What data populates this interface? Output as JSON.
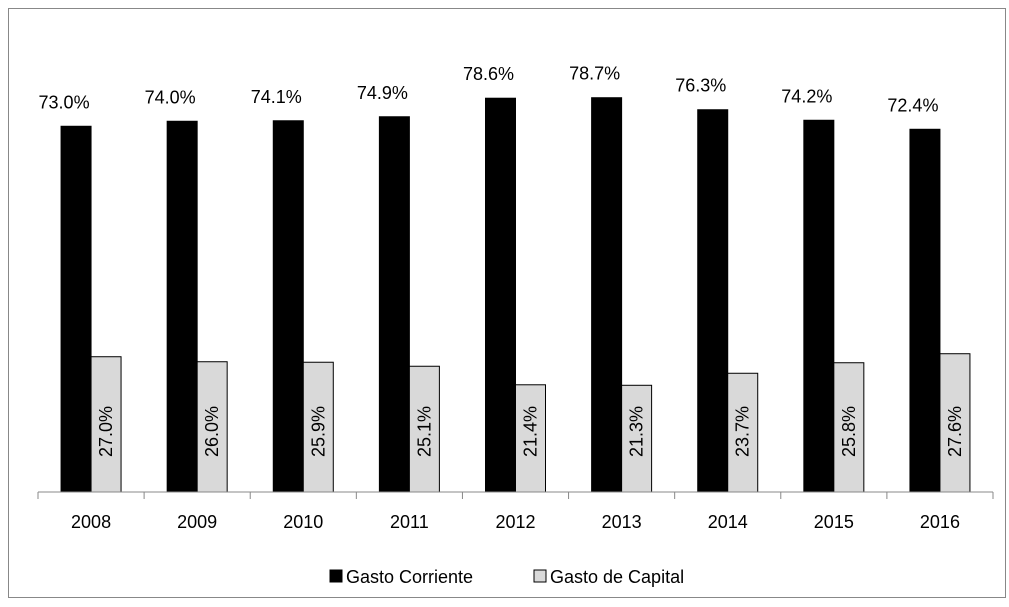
{
  "chart_data": {
    "type": "bar",
    "categories": [
      "2008",
      "2009",
      "2010",
      "2011",
      "2012",
      "2013",
      "2014",
      "2015",
      "2016"
    ],
    "series": [
      {
        "name": "Gasto Corriente",
        "color": "#000000",
        "values": [
          73.0,
          74.0,
          74.1,
          74.9,
          78.6,
          78.7,
          76.3,
          74.2,
          72.4
        ],
        "value_labels": [
          "73.0%",
          "74.0%",
          "74.1%",
          "74.9%",
          "78.6%",
          "78.7%",
          "76.3%",
          "74.2%",
          "72.4%"
        ]
      },
      {
        "name": "Gasto de Capital",
        "color": "#d9d9d9",
        "values": [
          27.0,
          26.0,
          25.9,
          25.1,
          21.4,
          21.3,
          23.7,
          25.8,
          27.6
        ],
        "value_labels": [
          "27.0%",
          "26.0%",
          "25.9%",
          "25.1%",
          "21.4%",
          "21.3%",
          "23.7%",
          "25.8%",
          "27.6%"
        ]
      }
    ],
    "legend": "bottom"
  }
}
